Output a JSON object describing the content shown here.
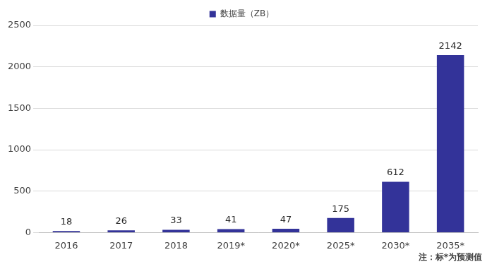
{
  "chart_data": {
    "type": "bar",
    "categories": [
      "2016",
      "2017",
      "2018",
      "2019*",
      "2020*",
      "2025*",
      "2030*",
      "2035*"
    ],
    "series": [
      {
        "name": "数据量（ZB）",
        "color": "#333399",
        "values": [
          18,
          26,
          33,
          41,
          47,
          175,
          612,
          2142
        ]
      }
    ],
    "ylim": [
      0,
      2500
    ],
    "yticks": [
      0,
      500,
      1000,
      1500,
      2000,
      2500
    ],
    "grid": true,
    "legend": "top",
    "data_labels": true,
    "annotations": [
      "注：标*为预测值"
    ]
  }
}
